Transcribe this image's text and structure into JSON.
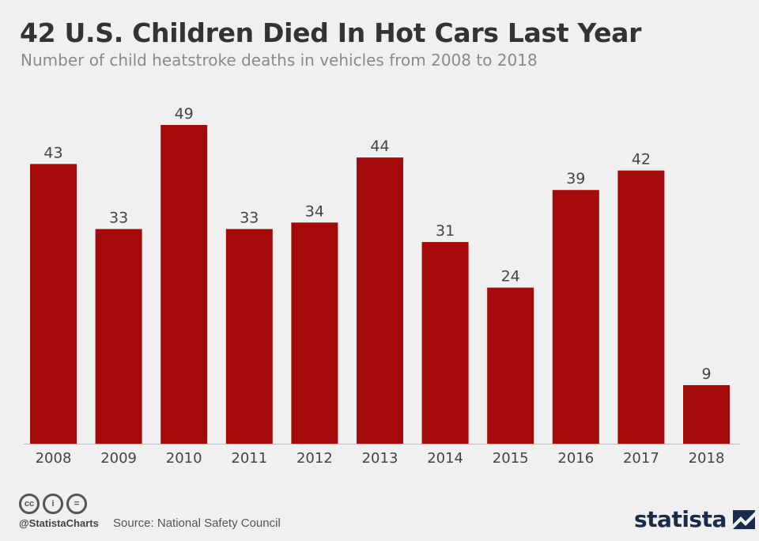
{
  "header": {
    "title": "42 U.S. Children Died In Hot Cars Last Year",
    "subtitle": "Number of child heatstroke deaths in vehicles from 2008 to 2018"
  },
  "chart_data": {
    "type": "bar",
    "categories": [
      "2008",
      "2009",
      "2010",
      "2011",
      "2012",
      "2013",
      "2014",
      "2015",
      "2016",
      "2017",
      "2018"
    ],
    "values": [
      43,
      33,
      49,
      33,
      34,
      44,
      31,
      24,
      39,
      42,
      9
    ],
    "title": "42 U.S. Children Died In Hot Cars Last Year",
    "subtitle": "Number of child heatstroke deaths in vehicles from 2008 to 2018",
    "xlabel": "",
    "ylabel": "",
    "ylim": [
      0,
      49
    ],
    "grid": false,
    "bar_color": "#a50a0a"
  },
  "footer": {
    "icons": [
      "cc-icon",
      "by-icon",
      "nd-icon"
    ],
    "cc_text": "cc",
    "by_text": "i",
    "nd_text": "=",
    "handle": "@StatistaCharts",
    "source": "Source: National Safety Council",
    "logo": "statista"
  }
}
